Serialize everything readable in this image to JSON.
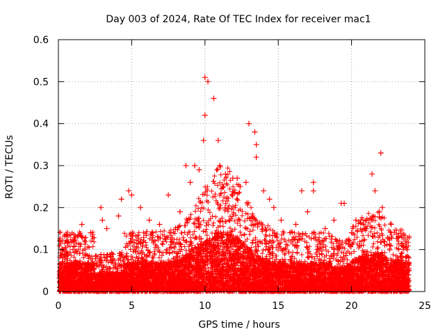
{
  "chart_data": {
    "type": "scatter",
    "title": "Day 003 of 2024, Rate Of TEC Index for receiver mac1",
    "xlabel": "GPS time / hours",
    "ylabel": "ROTI / TECUs",
    "xlim": [
      0,
      25
    ],
    "ylim": [
      0,
      0.6
    ],
    "xticks": [
      "0",
      "5",
      "10",
      "15",
      "20",
      "25"
    ],
    "yticks": [
      "0",
      "0.1",
      "0.2",
      "0.3",
      "0.4",
      "0.5",
      "0.6"
    ],
    "grid": true,
    "marker": "+",
    "colors": {
      "points": "#ff0000",
      "grid": "#a0a0a0",
      "axes": "#000000"
    },
    "series": [
      {
        "x": [
          0.3,
          0.5,
          1.0,
          1.6,
          2.2,
          2.9,
          3.0,
          3.3,
          4.1,
          4.3,
          4.8,
          5.0,
          5.6,
          6.2,
          6.9,
          7.5,
          8.3,
          8.7,
          9.0,
          9.3,
          9.6,
          9.9,
          10.0,
          10.0,
          10.2,
          10.6,
          10.9,
          11.0,
          11.4,
          11.9,
          12.2,
          12.4,
          12.8,
          13.0,
          13.4,
          13.5,
          13.5,
          14.0,
          14.4,
          14.7,
          15.2,
          15.8,
          16.2,
          16.6,
          17.0,
          17.4,
          17.4,
          18.2,
          18.8,
          19.3,
          19.5,
          20.0,
          20.3,
          21.0,
          21.4,
          21.6,
          21.9,
          22.0,
          22.1,
          22.7,
          23.2,
          23.8,
          23.9
        ],
        "y": [
          0.1,
          0.09,
          0.1,
          0.16,
          0.14,
          0.2,
          0.17,
          0.15,
          0.18,
          0.22,
          0.24,
          0.23,
          0.2,
          0.17,
          0.16,
          0.23,
          0.19,
          0.3,
          0.26,
          0.3,
          0.29,
          0.36,
          0.42,
          0.51,
          0.5,
          0.46,
          0.36,
          0.3,
          0.28,
          0.27,
          0.27,
          0.25,
          0.26,
          0.4,
          0.38,
          0.35,
          0.32,
          0.24,
          0.22,
          0.2,
          0.17,
          0.14,
          0.16,
          0.24,
          0.19,
          0.26,
          0.24,
          0.15,
          0.17,
          0.21,
          0.21,
          0.14,
          0.17,
          0.15,
          0.28,
          0.24,
          0.19,
          0.33,
          0.2,
          0.16,
          0.13,
          0.1,
          0.08
        ]
      }
    ]
  }
}
